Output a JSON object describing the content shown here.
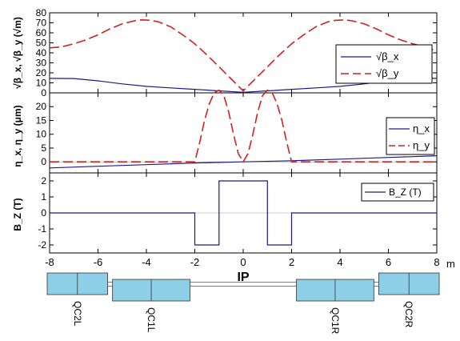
{
  "chart_data": [
    {
      "type": "line",
      "panel": "beta",
      "ylabel": "√β_x, √β_y (√m)",
      "ylim": [
        0,
        80
      ],
      "yticks": [
        "0",
        "10",
        "20",
        "30",
        "40",
        "50",
        "60",
        "70",
        "80"
      ],
      "xlim": [
        -8,
        8
      ],
      "series": [
        {
          "name": "√β_x",
          "color": "#1a1a8c",
          "style": "solid",
          "x": [
            -8,
            -7,
            -6,
            -5,
            -4,
            -3,
            -2,
            -1,
            0,
            1,
            2,
            3,
            4,
            5,
            6,
            7,
            8
          ],
          "values": [
            14.5,
            14.3,
            12,
            9,
            6.5,
            5,
            3.5,
            2,
            0.6,
            2,
            3.5,
            5,
            6.5,
            9,
            12,
            14.3,
            14.5
          ]
        },
        {
          "name": "√β_y",
          "color": "#d42020",
          "style": "dashed",
          "x": [
            -8,
            -7.5,
            -7,
            -6.5,
            -6,
            -5.5,
            -5,
            -4.5,
            -4.2,
            -3.8,
            -3.5,
            -3,
            -2.5,
            -2,
            -1.5,
            -1,
            -0.5,
            0,
            0.5,
            1,
            1.5,
            2,
            2.5,
            3,
            3.5,
            3.8,
            4.2,
            4.5,
            5,
            5.5,
            6,
            6.5,
            7,
            7.5,
            8
          ],
          "values": [
            45,
            46,
            49,
            53,
            58,
            64,
            69,
            72,
            73,
            72.5,
            71,
            66,
            58,
            49,
            38,
            26,
            14,
            2,
            14,
            26,
            38,
            49,
            58,
            66,
            71,
            72.5,
            73,
            72,
            69,
            64,
            58,
            53,
            49,
            46,
            42
          ]
        }
      ]
    },
    {
      "type": "line",
      "panel": "dispersion",
      "ylabel": "η_x, η_y (μm)",
      "ylim": [
        -4,
        25
      ],
      "yticks": [
        "0",
        "5",
        "10",
        "15",
        "20"
      ],
      "xlim": [
        -8,
        8
      ],
      "series": [
        {
          "name": "η_x",
          "color": "#1a1a8c",
          "style": "solid",
          "x": [
            -8,
            -6,
            -4,
            -2,
            0,
            2,
            4,
            6,
            8
          ],
          "values": [
            -2.2,
            -1.6,
            -1,
            -0.4,
            0,
            0.4,
            1,
            1.6,
            2.2
          ]
        },
        {
          "name": "η_y",
          "color": "#d42020",
          "style": "dashed",
          "x": [
            -8,
            -2,
            -1.8,
            -1.6,
            -1.4,
            -1.2,
            -1.0,
            -0.8,
            -0.6,
            -0.4,
            -0.2,
            0,
            0.2,
            0.4,
            0.6,
            0.8,
            1.0,
            1.2,
            1.4,
            1.6,
            1.8,
            2,
            8
          ],
          "values": [
            0,
            0,
            7,
            15,
            21,
            25,
            26,
            24,
            18,
            10,
            3,
            0,
            3,
            10,
            18,
            24,
            26,
            25,
            21,
            15,
            7,
            0,
            0
          ]
        }
      ]
    },
    {
      "type": "line",
      "panel": "solenoid",
      "ylabel": "B_Z (T)",
      "xlabel": "IP",
      "x_unit": "m",
      "ylim": [
        -2.5,
        2.5
      ],
      "yticks": [
        "-2",
        "-1",
        "0",
        "1",
        "2"
      ],
      "xlim": [
        -8,
        8
      ],
      "xticks": [
        "-8",
        "-6",
        "-4",
        "-2",
        "0",
        "2",
        "4",
        "6",
        "8"
      ],
      "series": [
        {
          "name": "B_Z (T)",
          "color": "#1a1a8c",
          "style": "solid",
          "x": [
            -8,
            -2,
            -2,
            -1,
            -1,
            1,
            1,
            2,
            2,
            8
          ],
          "values": [
            0,
            0,
            -2,
            -2,
            2,
            2,
            -2,
            -2,
            0,
            0
          ]
        }
      ]
    }
  ],
  "magnets": [
    {
      "label": "QC2L",
      "start": -8.1,
      "end": -5.6,
      "row": "upper"
    },
    {
      "label": "QC1L",
      "start": -5.4,
      "end": -2.2,
      "row": "lower"
    },
    {
      "label": "QC1R",
      "start": 2.2,
      "end": 5.4,
      "row": "lower"
    },
    {
      "label": "QC2R",
      "start": 5.6,
      "end": 8.1,
      "row": "upper"
    }
  ],
  "colors": {
    "magnet_fill": "#8ecfe8",
    "axis": "#000000"
  }
}
